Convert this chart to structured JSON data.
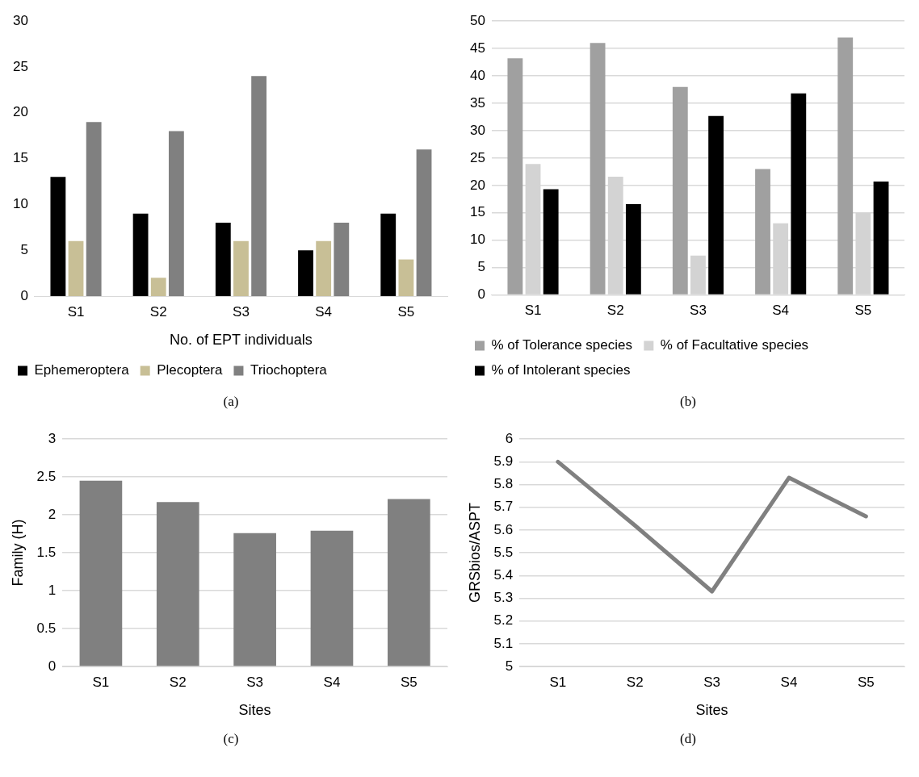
{
  "chart_data": [
    {
      "type": "bar",
      "categories": [
        "S1",
        "S2",
        "S3",
        "S4",
        "S5"
      ],
      "xlabel": "No. of EPT individuals",
      "ylim": [
        0,
        30
      ],
      "yticks": [
        0,
        5,
        10,
        15,
        20,
        25,
        30
      ],
      "grid": false,
      "legend": "bottom",
      "annotations": [
        "(a)"
      ],
      "series": [
        {
          "name": "Ephemeroptera",
          "color": "#000000",
          "values": [
            13,
            9,
            8,
            5,
            9
          ]
        },
        {
          "name": "Plecoptera",
          "color": "#c8bf96",
          "values": [
            6,
            2,
            6,
            6,
            4
          ]
        },
        {
          "name": "Triochoptera",
          "color": "#808080",
          "values": [
            19,
            18,
            24,
            8,
            16
          ]
        }
      ]
    },
    {
      "type": "bar",
      "categories": [
        "S1",
        "S2",
        "S3",
        "S4",
        "S5"
      ],
      "ylim": [
        0,
        50
      ],
      "yticks": [
        0,
        5,
        10,
        15,
        20,
        25,
        30,
        35,
        40,
        45,
        50
      ],
      "grid": "y",
      "legend": "bottom",
      "annotations": [
        "(b)"
      ],
      "series": [
        {
          "name": "% of Tolerance species",
          "color": "#a0a0a0",
          "values": [
            43.2,
            46,
            38,
            23,
            47
          ]
        },
        {
          "name": "% of Facultative species",
          "color": "#d3d3d3",
          "values": [
            23.9,
            21.6,
            7.2,
            13.1,
            15
          ]
        },
        {
          "name": "% of Intolerant species",
          "color": "#000000",
          "values": [
            19.3,
            16.6,
            32.7,
            36.8,
            20.7
          ]
        }
      ]
    },
    {
      "type": "bar",
      "categories": [
        "S1",
        "S2",
        "S3",
        "S4",
        "S5"
      ],
      "xlabel": "Sites",
      "ylabel": "Family (H)",
      "ylim": [
        0,
        3
      ],
      "yticks": [
        0,
        0.5,
        1,
        1.5,
        2,
        2.5,
        3
      ],
      "grid": "y",
      "annotations": [
        "(c)"
      ],
      "series": [
        {
          "color": "#808080",
          "values": [
            2.45,
            2.17,
            1.76,
            1.79,
            2.21
          ]
        }
      ]
    },
    {
      "type": "line",
      "categories": [
        "S1",
        "S2",
        "S3",
        "S4",
        "S5"
      ],
      "xlabel": "Sites",
      "ylabel": "GRSbios/ASPT",
      "ylim": [
        5,
        6
      ],
      "yticks": [
        5,
        5.1,
        5.2,
        5.3,
        5.4,
        5.5,
        5.6,
        5.7,
        5.8,
        5.9,
        6
      ],
      "grid": "y",
      "marker": "none",
      "line_style": "solid",
      "annotations": [
        "(d)"
      ],
      "series": [
        {
          "color": "#808080",
          "values": [
            5.9,
            5.62,
            5.33,
            5.83,
            5.66
          ]
        }
      ]
    }
  ]
}
